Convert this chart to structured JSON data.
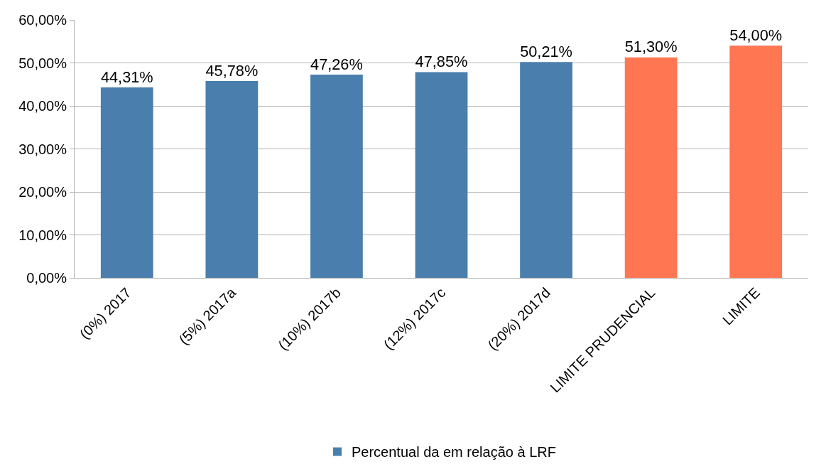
{
  "chart_data": {
    "type": "bar",
    "categories": [
      "(0%) 2017",
      "(5%) 2017a",
      "(10%) 2017b",
      "(12%) 2017c",
      "(20%) 2017d",
      "LIMITE PRUDENCIAL",
      "LIMITE"
    ],
    "series": [
      {
        "name": "Percentual da em relação à LRF",
        "colors": [
          "#4a7ead",
          "#4a7ead",
          "#4a7ead",
          "#4a7ead",
          "#4a7ead",
          "#ff7752",
          "#ff7752"
        ],
        "values": [
          44.31,
          45.78,
          47.26,
          47.85,
          50.21,
          51.3,
          54.0
        ],
        "value_labels": [
          "44,31%",
          "45,78%",
          "47,26%",
          "47,85%",
          "50,21%",
          "51,30%",
          "54,00%"
        ]
      }
    ],
    "ylim": [
      0,
      60
    ],
    "yticks": [
      {
        "value": 0,
        "label": "0,00%"
      },
      {
        "value": 10,
        "label": "10,00%"
      },
      {
        "value": 20,
        "label": "20,00%"
      },
      {
        "value": 30,
        "label": "30,00%"
      },
      {
        "value": 40,
        "label": "40,00%"
      },
      {
        "value": 50,
        "label": "50,00%"
      },
      {
        "value": 60,
        "label": "60,00%"
      }
    ],
    "grid": "y",
    "legend": "bottom"
  }
}
